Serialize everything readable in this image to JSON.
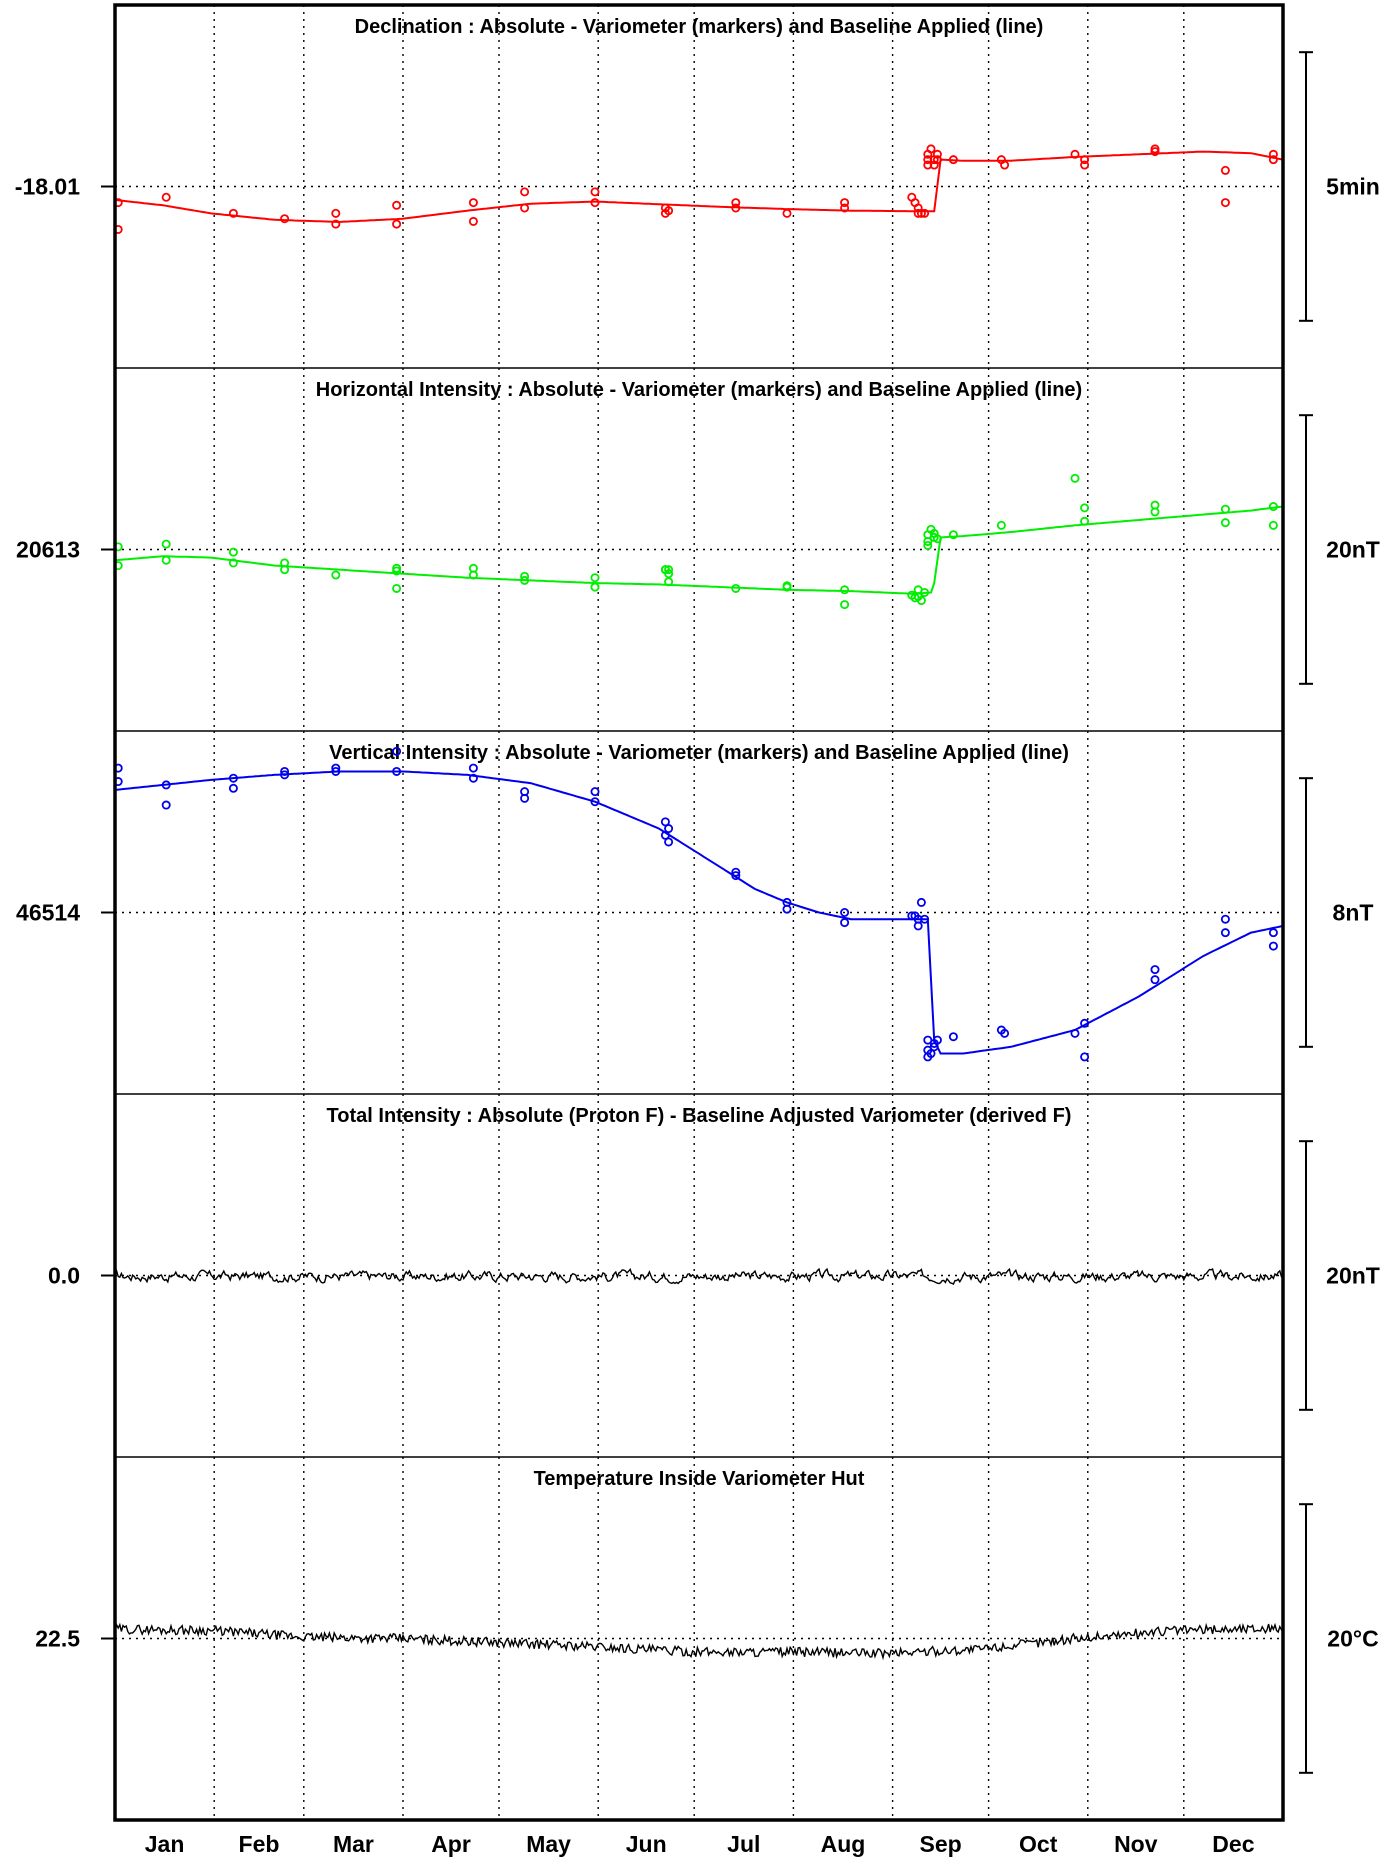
{
  "chart_data": {
    "type": "line",
    "x_categories": [
      "Jan",
      "Feb",
      "Mar",
      "Apr",
      "May",
      "Jun",
      "Jul",
      "Aug",
      "Sep",
      "Oct",
      "Nov",
      "Dec"
    ],
    "grid": true,
    "panels": [
      {
        "title": "Declination : Absolute - Variometer (markers) and Baseline Applied (line)",
        "ref_label": "-18.01",
        "ref_value": -18.01,
        "scale_bar_label": "5min",
        "color": "#ff0000",
        "y_units": "deviation from reference (min)",
        "ylim": [
          -2.5,
          2.5
        ],
        "baseline_line": {
          "x_day": [
            0,
            15,
            30,
            50,
            70,
            90,
            110,
            130,
            150,
            170,
            190,
            210,
            230,
            250,
            255,
            256,
            258,
            265,
            280,
            300,
            320,
            340,
            355,
            365
          ],
          "y": [
            -0.25,
            -0.35,
            -0.5,
            -0.62,
            -0.66,
            -0.6,
            -0.45,
            -0.32,
            -0.28,
            -0.33,
            -0.38,
            -0.42,
            -0.45,
            -0.46,
            -0.46,
            -0.46,
            0.5,
            0.48,
            0.48,
            0.55,
            0.6,
            0.65,
            0.62,
            0.5
          ]
        },
        "markers": {
          "x_day": [
            1,
            1,
            16,
            37,
            53,
            69,
            69,
            88,
            88,
            112,
            112,
            128,
            128,
            150,
            150,
            172,
            172,
            173,
            194,
            194,
            210,
            228,
            228,
            249,
            250,
            251,
            251,
            252,
            253,
            254,
            254,
            254,
            255,
            256,
            256,
            257,
            257,
            262,
            277,
            278,
            300,
            303,
            303,
            325,
            325,
            347,
            347,
            362,
            362
          ],
          "y": [
            -0.3,
            -0.8,
            -0.2,
            -0.5,
            -0.6,
            -0.5,
            -0.7,
            -0.35,
            -0.7,
            -0.3,
            -0.65,
            -0.4,
            -0.1,
            -0.1,
            -0.3,
            -0.4,
            -0.5,
            -0.45,
            -0.4,
            -0.3,
            -0.5,
            -0.3,
            -0.4,
            -0.2,
            -0.3,
            -0.5,
            -0.4,
            -0.5,
            -0.5,
            0.5,
            0.6,
            0.4,
            0.7,
            0.5,
            0.4,
            0.6,
            0.5,
            0.5,
            0.5,
            0.4,
            0.6,
            0.5,
            0.4,
            0.65,
            0.7,
            0.3,
            -0.3,
            0.5,
            0.6
          ]
        }
      },
      {
        "title": "Horizontal Intensity : Absolute - Variometer (markers) and Baseline Applied (line)",
        "ref_label": "20613",
        "ref_value": 20613,
        "scale_bar_label": "20nT",
        "color": "#00ee00",
        "y_units": "deviation from reference (nT)",
        "ylim": [
          -10,
          10
        ],
        "baseline_line": {
          "x_day": [
            0,
            15,
            30,
            50,
            70,
            90,
            110,
            130,
            150,
            170,
            190,
            210,
            230,
            250,
            255,
            256,
            258,
            265,
            280,
            300,
            320,
            340,
            355,
            365
          ],
          "y": [
            -0.8,
            -0.5,
            -0.6,
            -1.2,
            -1.5,
            -1.8,
            -2.1,
            -2.3,
            -2.5,
            -2.6,
            -2.8,
            -3.0,
            -3.1,
            -3.3,
            -3.2,
            -2.5,
            0.9,
            1.0,
            1.3,
            1.8,
            2.2,
            2.6,
            2.9,
            3.2
          ]
        },
        "markers": {
          "x_day": [
            1,
            1,
            16,
            16,
            37,
            37,
            53,
            53,
            69,
            88,
            88,
            88,
            112,
            112,
            128,
            128,
            150,
            150,
            172,
            172,
            173,
            173,
            173,
            194,
            210,
            210,
            228,
            228,
            249,
            250,
            251,
            251,
            252,
            253,
            254,
            254,
            254,
            255,
            256,
            256,
            257,
            262,
            277,
            300,
            303,
            303,
            325,
            325,
            347,
            347,
            362,
            362
          ],
          "y": [
            0.2,
            -1.2,
            0.4,
            -0.8,
            -0.2,
            -1.0,
            -1.0,
            -1.5,
            -1.9,
            -1.4,
            -2.9,
            -1.6,
            -1.4,
            -1.9,
            -2.0,
            -2.3,
            -2.1,
            -2.8,
            -1.5,
            -1.5,
            -2.4,
            -1.8,
            -1.5,
            -2.9,
            -2.7,
            -2.8,
            -3.0,
            -4.1,
            -3.4,
            -3.6,
            -3.0,
            -3.5,
            -3.8,
            -3.2,
            1.1,
            0.6,
            0.3,
            1.5,
            0.9,
            1.2,
            0.8,
            1.1,
            1.8,
            5.3,
            3.1,
            2.1,
            3.3,
            2.8,
            3.0,
            2.0,
            3.2,
            1.8
          ]
        }
      },
      {
        "title": "Vertical Intensity : Absolute - Variometer (markers) and Baseline Applied (line)",
        "ref_label": "46514",
        "ref_value": 46514,
        "scale_bar_label": "8nT",
        "color": "#0000ee",
        "y_units": "deviation from reference (nT)",
        "ylim": [
          -4,
          4
        ],
        "baseline_line": {
          "x_day": [
            0,
            15,
            30,
            50,
            70,
            90,
            110,
            130,
            150,
            170,
            190,
            200,
            210,
            220,
            230,
            240,
            250,
            254,
            255,
            256,
            258,
            265,
            280,
            300,
            320,
            340,
            355,
            365
          ],
          "y": [
            3.65,
            3.8,
            3.95,
            4.1,
            4.2,
            4.2,
            4.1,
            3.85,
            3.3,
            2.5,
            1.3,
            0.7,
            0.3,
            0.0,
            -0.2,
            -0.2,
            -0.2,
            -0.2,
            -2.0,
            -3.8,
            -4.2,
            -4.2,
            -4.0,
            -3.5,
            -2.5,
            -1.3,
            -0.6,
            -0.4
          ]
        },
        "markers": {
          "x_day": [
            1,
            1,
            16,
            16,
            37,
            37,
            53,
            53,
            69,
            69,
            88,
            88,
            112,
            112,
            128,
            128,
            150,
            150,
            172,
            172,
            173,
            173,
            194,
            194,
            210,
            210,
            228,
            228,
            249,
            250,
            251,
            251,
            252,
            253,
            254,
            254,
            254,
            255,
            256,
            256,
            257,
            262,
            277,
            278,
            300,
            303,
            303,
            325,
            325,
            347,
            347,
            362,
            362
          ],
          "y": [
            4.3,
            3.9,
            3.8,
            3.2,
            4.0,
            3.7,
            4.2,
            4.1,
            4.3,
            4.2,
            4.8,
            4.2,
            4.3,
            4.0,
            3.6,
            3.4,
            3.6,
            3.3,
            2.7,
            2.3,
            2.1,
            2.5,
            1.2,
            1.1,
            0.3,
            0.1,
            0.0,
            -0.3,
            -0.1,
            -0.1,
            -0.2,
            -0.4,
            0.3,
            -0.2,
            -3.8,
            -4.1,
            -4.3,
            -4.2,
            -3.9,
            -4.0,
            -3.8,
            -3.7,
            -3.5,
            -3.6,
            -3.6,
            -3.3,
            -4.3,
            -2.0,
            -1.7,
            -0.2,
            -0.6,
            -0.6,
            -1.0
          ]
        }
      },
      {
        "title": "Total Intensity : Absolute (Proton F) - Baseline Adjusted Variometer (derived F)",
        "ref_label": "0.0",
        "ref_value": 0.0,
        "scale_bar_label": "20nT",
        "color": "#000000",
        "y_units": "nT",
        "ylim": [
          -10,
          10
        ],
        "series_daily_offsets_description_free": true,
        "series_seed": 17,
        "series_amplitude": 0.25,
        "series_mean": -0.05
      },
      {
        "title": "Temperature Inside Variometer Hut",
        "ref_label": "22.5",
        "ref_value": 22.5,
        "scale_bar_label": "20°C",
        "color": "#000000",
        "y_units": "°C",
        "ylim": [
          12.5,
          32.5
        ],
        "trend": {
          "x_day": [
            0,
            30,
            60,
            90,
            120,
            150,
            180,
            210,
            240,
            270,
            300,
            330,
            365
          ],
          "y": [
            23.2,
            23.1,
            22.6,
            22.5,
            22.2,
            21.9,
            21.5,
            21.5,
            21.4,
            21.7,
            22.5,
            23.1,
            23.3
          ]
        },
        "series_seed": 29,
        "series_amplitude": 0.35
      }
    ]
  }
}
